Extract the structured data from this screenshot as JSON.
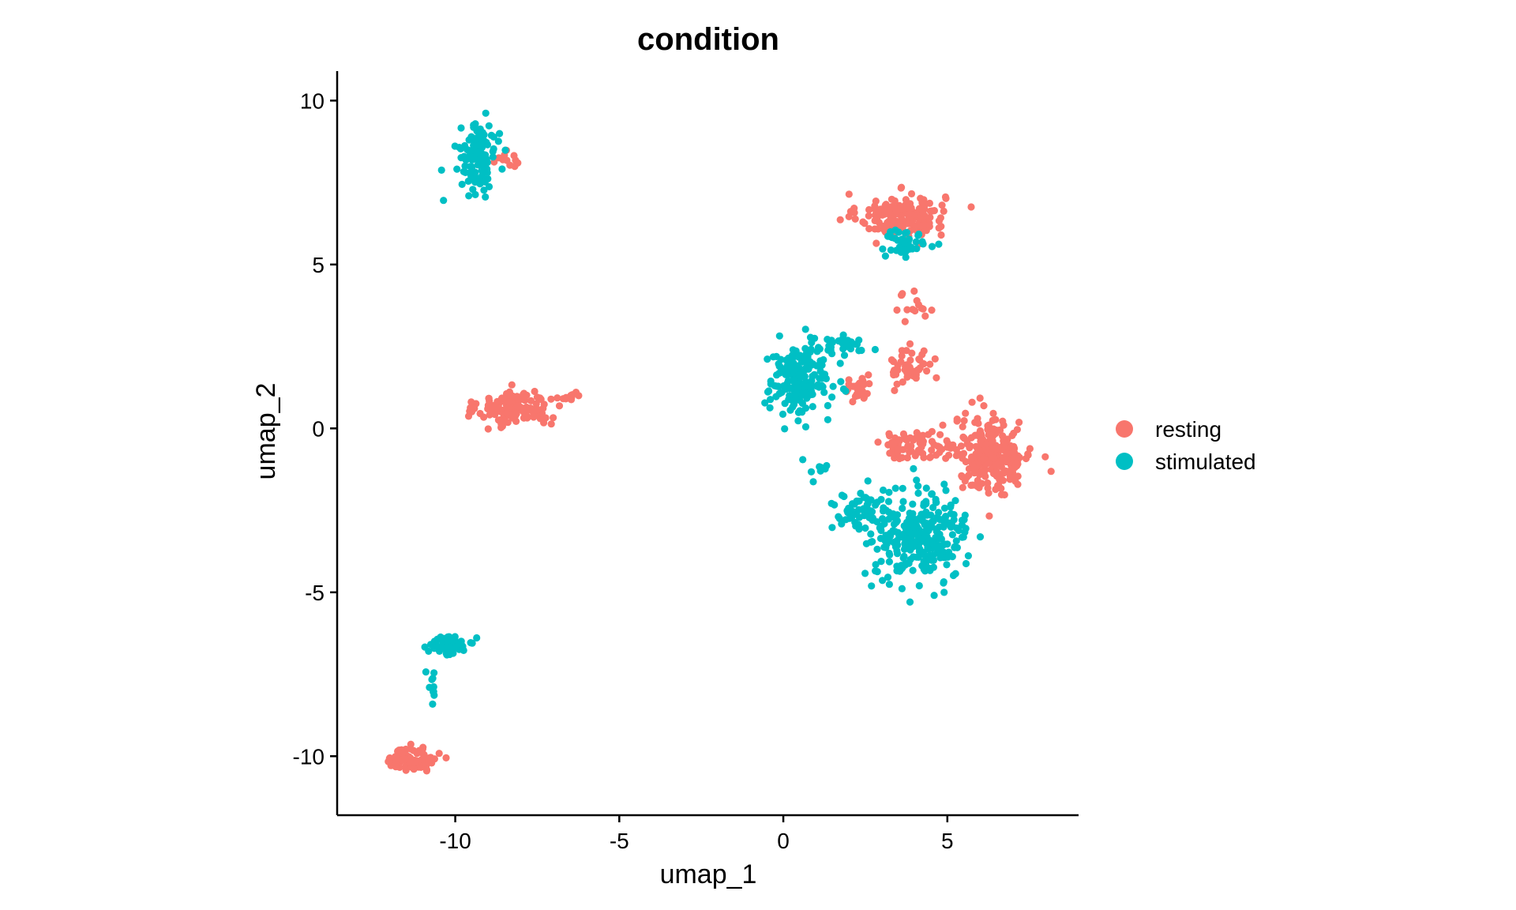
{
  "chart_data": {
    "type": "scatter",
    "title": "condition",
    "xlabel": "umap_1",
    "ylabel": "umap_2",
    "xlim": [
      -13.6,
      9.0
    ],
    "ylim": [
      -11.8,
      10.9
    ],
    "xticks": [
      -10,
      -5,
      0,
      5
    ],
    "yticks": [
      -10,
      -5,
      0,
      5,
      10
    ],
    "grid": false,
    "legend_position": "right",
    "series": [
      {
        "name": "resting",
        "color": "#F8766D",
        "clusters": [
          {
            "center": [
              3.6,
              6.5
            ],
            "spread": [
              1.1,
              0.55
            ],
            "count": 170
          },
          {
            "center": [
              -8.2,
              0.6
            ],
            "spread": [
              0.9,
              0.45
            ],
            "count": 150
          },
          {
            "center": [
              -6.5,
              1.0
            ],
            "spread": [
              0.35,
              0.2
            ],
            "count": 10
          },
          {
            "center": [
              6.4,
              -0.8
            ],
            "spread": [
              1.0,
              0.95
            ],
            "count": 240
          },
          {
            "center": [
              4.0,
              -0.5
            ],
            "spread": [
              1.0,
              0.35
            ],
            "count": 70
          },
          {
            "center": [
              2.3,
              1.1
            ],
            "spread": [
              0.35,
              0.35
            ],
            "count": 25
          },
          {
            "center": [
              3.9,
              1.9
            ],
            "spread": [
              0.55,
              0.5
            ],
            "count": 45
          },
          {
            "center": [
              4.0,
              3.8
            ],
            "spread": [
              0.5,
              0.5
            ],
            "count": 15
          },
          {
            "center": [
              -11.3,
              -10.1
            ],
            "spread": [
              0.6,
              0.3
            ],
            "count": 90
          },
          {
            "center": [
              -8.4,
              8.2
            ],
            "spread": [
              0.3,
              0.2
            ],
            "count": 12
          }
        ]
      },
      {
        "name": "stimulated",
        "color": "#00BFC4",
        "clusters": [
          {
            "center": [
              0.5,
              1.5
            ],
            "spread": [
              0.8,
              0.9
            ],
            "count": 200
          },
          {
            "center": [
              1.8,
              2.5
            ],
            "spread": [
              0.8,
              0.3
            ],
            "count": 30
          },
          {
            "center": [
              4.2,
              -3.3
            ],
            "spread": [
              1.15,
              1.1
            ],
            "count": 290
          },
          {
            "center": [
              2.3,
              -2.6
            ],
            "spread": [
              0.7,
              0.5
            ],
            "count": 60
          },
          {
            "center": [
              3.7,
              5.7
            ],
            "spread": [
              0.7,
              0.35
            ],
            "count": 40
          },
          {
            "center": [
              -9.3,
              8.3
            ],
            "spread": [
              0.45,
              0.8
            ],
            "count": 130
          },
          {
            "center": [
              -10.2,
              -6.6
            ],
            "spread": [
              0.45,
              0.25
            ],
            "count": 75
          },
          {
            "center": [
              -10.7,
              -8.0
            ],
            "spread": [
              0.12,
              0.6
            ],
            "count": 10
          },
          {
            "center": [
              1.1,
              -1.3
            ],
            "spread": [
              0.4,
              0.4
            ],
            "count": 8
          }
        ]
      }
    ]
  }
}
